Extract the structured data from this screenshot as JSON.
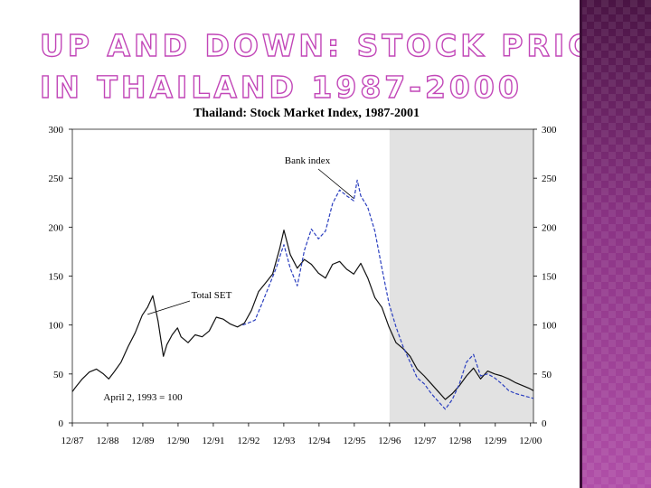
{
  "slide": {
    "title_line1": "UP AND DOWN: STOCK PRICES",
    "title_line2": "IN THAILAND 1987-2000",
    "accent_color": "#c247b8",
    "panel_color": "#7a2a73"
  },
  "chart_data": {
    "type": "line",
    "title": "Thailand: Stock Market Index, 1987-2001",
    "xlabel": "",
    "ylabel": "",
    "ylim": [
      0,
      300
    ],
    "xlim": [
      1987.917,
      2001.0
    ],
    "yticks": [
      0,
      50,
      100,
      150,
      200,
      250,
      300
    ],
    "x_tick_labels": [
      "12/87",
      "12/88",
      "12/89",
      "12/90",
      "12/91",
      "12/92",
      "12/93",
      "12/94",
      "12/95",
      "12/96",
      "12/97",
      "12/98",
      "12/99",
      "12/00"
    ],
    "x_tick_values": [
      1987.917,
      1988.917,
      1989.917,
      1990.917,
      1991.917,
      1992.917,
      1993.917,
      1994.917,
      1995.917,
      1996.917,
      1997.917,
      1998.917,
      1999.917,
      2000.917
    ],
    "shaded_region": [
      1996.917,
      2001.0
    ],
    "annotations": [
      {
        "text": "Bank index",
        "points_to": [
          1996.0,
          235
        ]
      },
      {
        "text": "Total SET",
        "points_to": [
          1990.0,
          110
        ]
      },
      {
        "text": "April 2, 1993 = 100"
      }
    ],
    "series": [
      {
        "name": "Total SET",
        "color": "#111111",
        "x": [
          1987.92,
          1988.0,
          1988.2,
          1988.4,
          1988.6,
          1988.8,
          1988.95,
          1989.1,
          1989.3,
          1989.5,
          1989.7,
          1989.9,
          1990.05,
          1990.2,
          1990.35,
          1990.5,
          1990.6,
          1990.75,
          1990.9,
          1991.0,
          1991.2,
          1991.4,
          1991.6,
          1991.8,
          1992.0,
          1992.2,
          1992.4,
          1992.6,
          1992.8,
          1993.0,
          1993.2,
          1993.4,
          1993.6,
          1993.8,
          1993.92,
          1994.1,
          1994.3,
          1994.5,
          1994.7,
          1994.9,
          1995.1,
          1995.3,
          1995.5,
          1995.7,
          1995.9,
          1996.1,
          1996.3,
          1996.5,
          1996.7,
          1996.9,
          1997.1,
          1997.3,
          1997.5,
          1997.7,
          1997.9,
          1998.1,
          1998.3,
          1998.5,
          1998.7,
          1998.9,
          1999.1,
          1999.3,
          1999.5,
          1999.7,
          1999.9,
          2000.1,
          2000.3,
          2000.5,
          2000.7,
          2000.9,
          2001.0
        ],
        "values": [
          32,
          36,
          45,
          52,
          55,
          50,
          45,
          52,
          62,
          78,
          92,
          110,
          118,
          130,
          104,
          68,
          80,
          90,
          97,
          88,
          82,
          90,
          88,
          94,
          108,
          106,
          101,
          98,
          102,
          115,
          134,
          143,
          152,
          178,
          197,
          172,
          158,
          167,
          162,
          153,
          148,
          162,
          165,
          157,
          152,
          163,
          148,
          128,
          118,
          98,
          82,
          76,
          68,
          55,
          48,
          40,
          32,
          24,
          30,
          38,
          48,
          56,
          45,
          53,
          50,
          48,
          45,
          41,
          38,
          35,
          33
        ]
      },
      {
        "name": "Bank index",
        "color": "#2b3fbf",
        "x": [
          1992.75,
          1992.9,
          1993.1,
          1993.3,
          1993.5,
          1993.7,
          1993.85,
          1993.92,
          1994.1,
          1994.3,
          1994.5,
          1994.7,
          1994.9,
          1995.1,
          1995.3,
          1995.5,
          1995.7,
          1995.9,
          1996.0,
          1996.1,
          1996.3,
          1996.5,
          1996.7,
          1996.9,
          1997.1,
          1997.3,
          1997.5,
          1997.7,
          1997.9,
          1998.1,
          1998.3,
          1998.5,
          1998.7,
          1998.9,
          1999.1,
          1999.3,
          1999.5,
          1999.7,
          1999.9,
          2000.1,
          2000.3,
          2000.5,
          2000.7,
          2000.9,
          2001.0
        ],
        "values": [
          100,
          102,
          105,
          122,
          140,
          158,
          175,
          182,
          158,
          140,
          176,
          198,
          188,
          196,
          224,
          238,
          232,
          227,
          248,
          232,
          220,
          196,
          158,
          122,
          98,
          78,
          62,
          46,
          40,
          30,
          22,
          14,
          24,
          40,
          62,
          70,
          48,
          50,
          46,
          40,
          33,
          30,
          28,
          26,
          25
        ]
      }
    ]
  }
}
